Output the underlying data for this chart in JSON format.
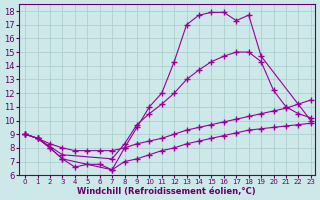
{
  "background_color": "#cce8e8",
  "line_color": "#990099",
  "grid_color": "#aacccc",
  "xlabel": "Windchill (Refroidissement éolien,°C)",
  "xlabel_color": "#660066",
  "tick_color": "#660066",
  "ylim": [
    6,
    18.5
  ],
  "xlim": [
    -0.5,
    23.3
  ],
  "yticks": [
    6,
    7,
    8,
    9,
    10,
    11,
    12,
    13,
    14,
    15,
    16,
    17,
    18
  ],
  "xticks": [
    0,
    1,
    2,
    3,
    4,
    5,
    6,
    7,
    8,
    9,
    10,
    11,
    12,
    13,
    14,
    15,
    16,
    17,
    18,
    19,
    20,
    21,
    22,
    23
  ],
  "curves": [
    {
      "x": [
        0,
        1,
        2,
        3,
        7,
        8,
        9,
        10,
        11,
        12,
        13,
        14,
        15,
        16,
        17,
        18,
        19,
        23
      ],
      "y": [
        9.0,
        8.7,
        8.0,
        7.2,
        6.4,
        8.0,
        9.5,
        11.0,
        12.0,
        14.3,
        17.0,
        17.7,
        17.9,
        17.9,
        17.3,
        17.7,
        14.7,
        10.0
      ]
    },
    {
      "x": [
        0,
        1,
        3,
        7,
        8,
        9,
        10,
        11,
        12,
        13,
        14,
        15,
        16,
        17,
        18,
        19,
        20,
        21,
        22,
        23
      ],
      "y": [
        9.0,
        8.7,
        7.5,
        7.2,
        8.3,
        9.7,
        10.5,
        11.2,
        12.0,
        13.0,
        13.7,
        14.3,
        14.7,
        15.0,
        15.0,
        14.3,
        12.2,
        11.0,
        10.5,
        10.2
      ]
    },
    {
      "x": [
        0,
        1,
        2,
        3,
        4,
        5,
        6,
        7,
        8,
        9,
        10,
        11,
        12,
        13,
        14,
        15,
        16,
        17,
        18,
        19,
        20,
        21,
        22,
        23
      ],
      "y": [
        9.0,
        8.7,
        8.3,
        8.0,
        7.8,
        7.8,
        7.8,
        7.8,
        8.0,
        8.3,
        8.5,
        8.7,
        9.0,
        9.3,
        9.5,
        9.7,
        9.9,
        10.1,
        10.3,
        10.5,
        10.7,
        10.9,
        11.2,
        11.5
      ]
    },
    {
      "x": [
        0,
        1,
        2,
        3,
        4,
        5,
        6,
        7,
        8,
        9,
        10,
        11,
        12,
        13,
        14,
        15,
        16,
        17,
        18,
        19,
        20,
        21,
        22,
        23
      ],
      "y": [
        9.0,
        8.7,
        8.0,
        7.2,
        6.6,
        6.8,
        6.8,
        6.4,
        7.0,
        7.2,
        7.5,
        7.8,
        8.0,
        8.3,
        8.5,
        8.7,
        8.9,
        9.1,
        9.3,
        9.4,
        9.5,
        9.6,
        9.7,
        9.8
      ]
    }
  ]
}
